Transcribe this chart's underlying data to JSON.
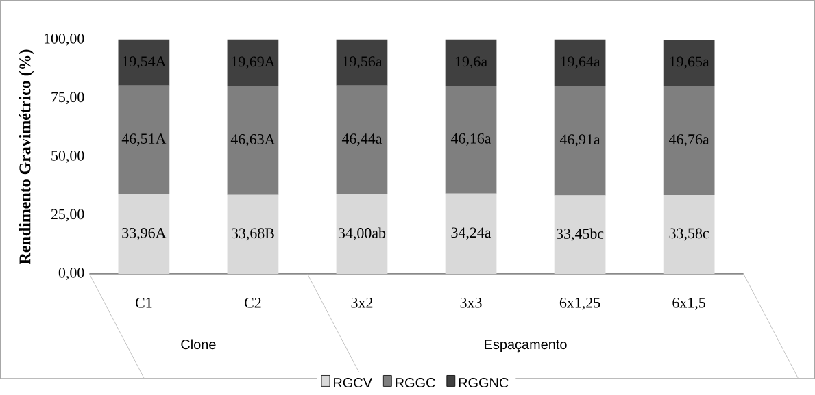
{
  "chart_data": {
    "type": "bar",
    "stacked": true,
    "ylabel": "Rendimento Gravimétrico (%)",
    "categories": [
      "C1",
      "C2",
      "3x2",
      "3x3",
      "6x1,25",
      "6x1,5"
    ],
    "series": [
      {
        "name": "RGCV",
        "color": "#d9d9d9",
        "values": [
          33.96,
          33.68,
          34.0,
          34.24,
          33.45,
          33.58
        ],
        "value_labels": [
          "33,96A",
          "33,68B",
          "34,00ab",
          "34,24a",
          "33,45bc",
          "33,58c"
        ]
      },
      {
        "name": "RGGC",
        "color": "#7f7f7f",
        "values": [
          46.51,
          46.63,
          46.44,
          46.16,
          46.91,
          46.76
        ],
        "value_labels": [
          "46,51A",
          "46,63A",
          "46,44a",
          "46,16a",
          "46,91a",
          "46,76a"
        ]
      },
      {
        "name": "RGGNC",
        "color": "#404040",
        "values": [
          19.54,
          19.69,
          19.56,
          19.6,
          19.64,
          19.65
        ],
        "value_labels": [
          "19,54A",
          "19,69A",
          "19,56a",
          "19,6a",
          "19,64a",
          "19,65a"
        ]
      }
    ],
    "ylim": [
      0,
      100.01
    ],
    "yticks": [
      {
        "value": 0,
        "label": "0,00"
      },
      {
        "value": 25,
        "label": "25,00"
      },
      {
        "value": 50,
        "label": "50,00"
      },
      {
        "value": 75,
        "label": "75,00"
      },
      {
        "value": 100,
        "label": "100,00"
      }
    ],
    "legend": "bottom",
    "annotations": [
      "Clone",
      "Espaçamento"
    ]
  }
}
